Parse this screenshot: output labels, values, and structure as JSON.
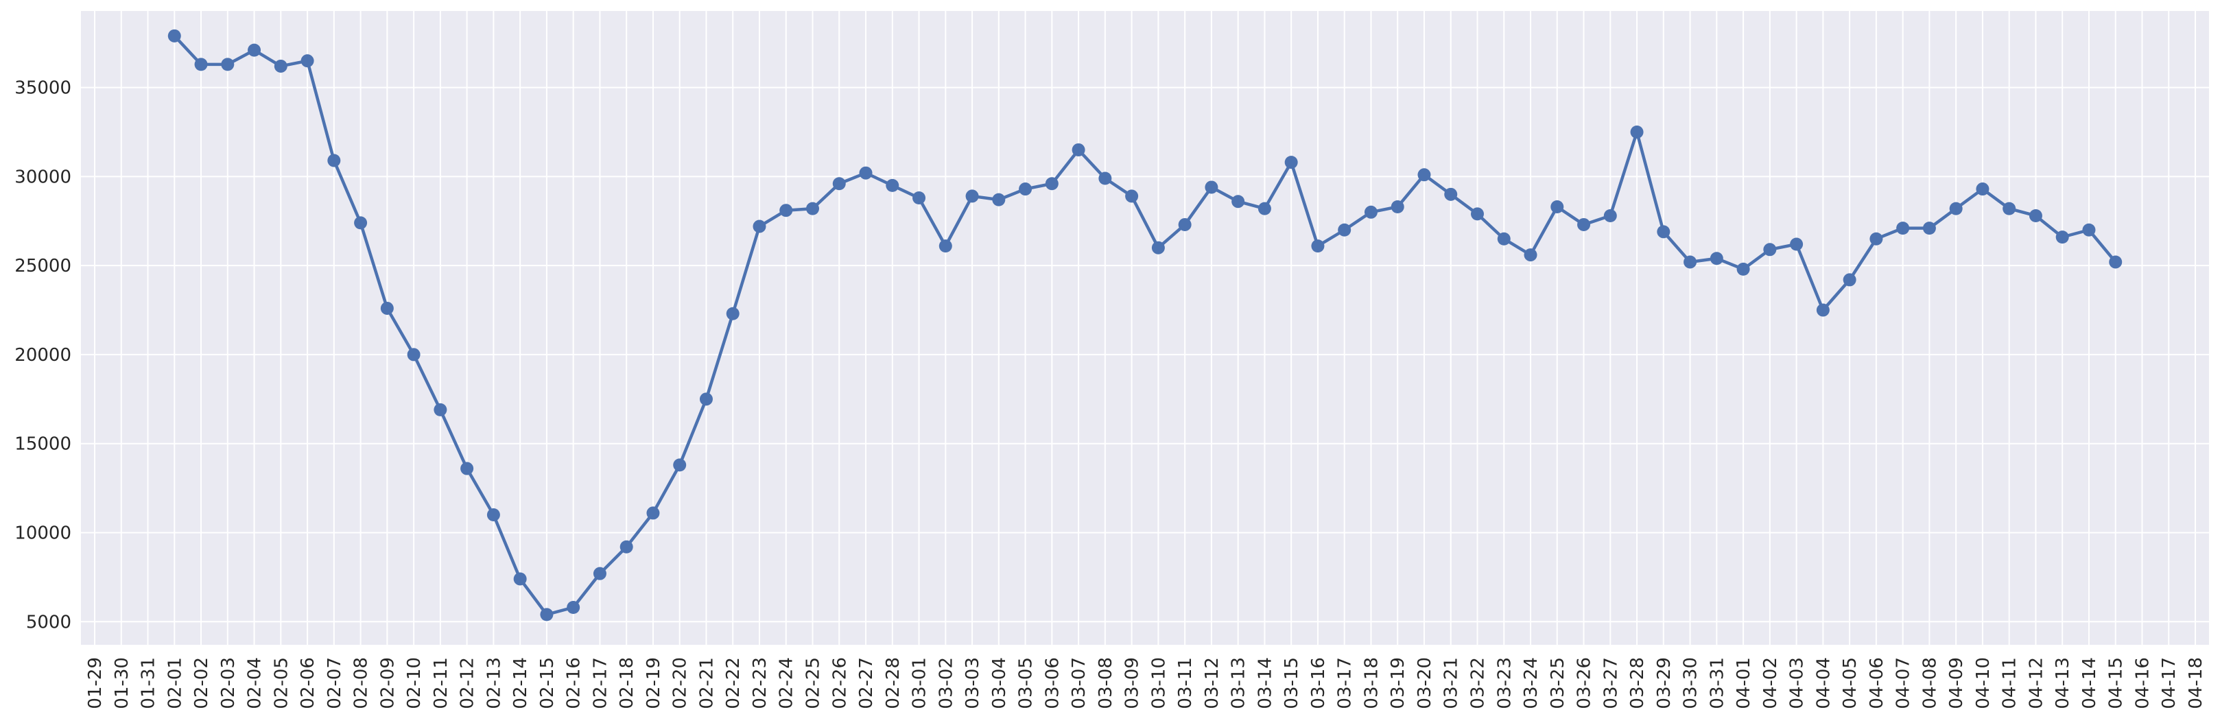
{
  "chart_data": {
    "type": "line",
    "title": "",
    "xlabel": "",
    "ylabel": "",
    "grid": true,
    "legend": "none",
    "colors": {
      "background": "#eaeaf2",
      "grid": "#ffffff",
      "line": "#4c72b0",
      "text": "#262626"
    },
    "x": [
      "01-29",
      "01-30",
      "01-31",
      "02-01",
      "02-02",
      "02-03",
      "02-04",
      "02-05",
      "02-06",
      "02-07",
      "02-08",
      "02-09",
      "02-10",
      "02-11",
      "02-12",
      "02-13",
      "02-14",
      "02-15",
      "02-16",
      "02-17",
      "02-18",
      "02-19",
      "02-20",
      "02-21",
      "02-22",
      "02-23",
      "02-24",
      "02-25",
      "02-26",
      "02-27",
      "02-28",
      "03-01",
      "03-02",
      "03-03",
      "03-04",
      "03-05",
      "03-06",
      "03-07",
      "03-08",
      "03-09",
      "03-10",
      "03-11",
      "03-12",
      "03-13",
      "03-14",
      "03-15",
      "03-16",
      "03-17",
      "03-18",
      "03-19",
      "03-20",
      "03-21",
      "03-22",
      "03-23",
      "03-24",
      "03-25",
      "03-26",
      "03-27",
      "03-28",
      "03-29",
      "03-30",
      "03-31",
      "04-01",
      "04-02",
      "04-03",
      "04-04",
      "04-05",
      "04-06",
      "04-07",
      "04-08",
      "04-09",
      "04-10",
      "04-11",
      "04-12",
      "04-13",
      "04-14",
      "04-15",
      "04-16",
      "04-17",
      "04-18"
    ],
    "series": [
      {
        "values": [
          null,
          null,
          null,
          37900,
          36300,
          36300,
          37100,
          36200,
          36500,
          30900,
          27400,
          22600,
          20000,
          16900,
          13600,
          11000,
          7400,
          5400,
          5800,
          7700,
          9200,
          11100,
          13800,
          17500,
          22300,
          27200,
          28100,
          28200,
          29600,
          30200,
          29500,
          28800,
          26100,
          28900,
          28700,
          29300,
          29600,
          31500,
          29900,
          28900,
          26000,
          27300,
          29400,
          28600,
          28200,
          30800,
          26100,
          27000,
          28000,
          28300,
          30100,
          29000,
          27900,
          26500,
          25600,
          28300,
          27300,
          27800,
          32500,
          26900,
          25200,
          25400,
          24800,
          25900,
          26200,
          22500,
          24200,
          26500,
          27100,
          27100,
          28200,
          29300,
          28200,
          27800,
          26600,
          27000,
          25200,
          null,
          null,
          null
        ]
      }
    ],
    "ylim": [
      3700,
      39300
    ],
    "yticks": [
      5000,
      10000,
      15000,
      20000,
      25000,
      30000,
      35000
    ]
  }
}
